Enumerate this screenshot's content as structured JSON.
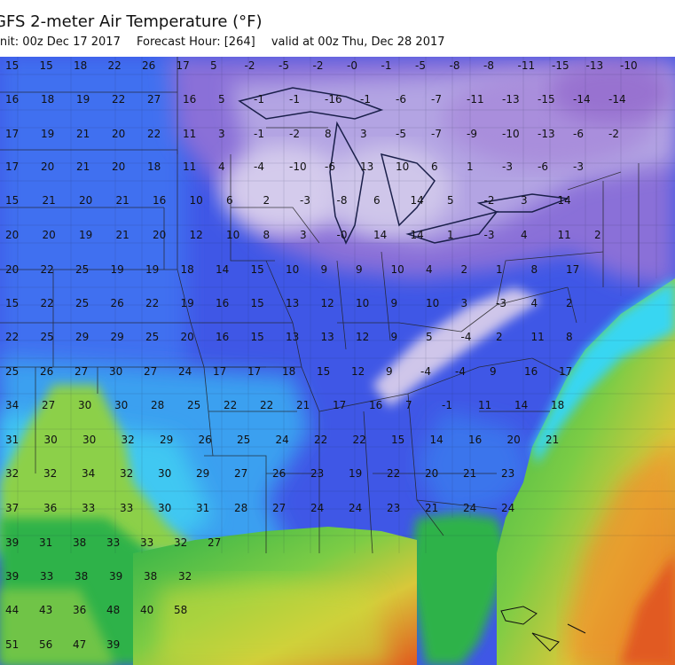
{
  "header": {
    "title": "GFS 2-meter Air Temperature (°F)",
    "init_text": "Init: 00z Dec 17 2017",
    "forecast_hour_text": "Forecast Hour: [264]",
    "valid_text": "valid at 00z Thu, Dec 28 2017"
  },
  "colors": {
    "deep_purple": "#8f68c9",
    "light_purple": "#d9d0ea",
    "purple_blue": "#7a6fd6",
    "blue": "#3f57e6",
    "light_blue": "#3f93ee",
    "cyan": "#38d6f2",
    "green": "#2fb24a",
    "lime": "#8cd04a",
    "yellow_green": "#c9d83a",
    "orange": "#ef8d2b",
    "red_orange": "#e15a20"
  },
  "temperature_rows": [
    [
      "15",
      "15",
      "18",
      "22",
      "26",
      "17",
      "5",
      "-2",
      "-5",
      "-2",
      "-0",
      "-1",
      "-5",
      "-8",
      "-8",
      "-11",
      "-15",
      "-13",
      "-10"
    ],
    [
      "16",
      "18",
      "19",
      "22",
      "27",
      "16",
      "5",
      "-1",
      "-1",
      "-16",
      "-1",
      "-6",
      "-7",
      "-11",
      "-13",
      "-15",
      "-14",
      "-14"
    ],
    [
      "17",
      "19",
      "21",
      "20",
      "22",
      "11",
      "3",
      "-1",
      "-2",
      "8",
      "3",
      "-5",
      "-7",
      "-9",
      "-10",
      "-13",
      "-6",
      "-2"
    ],
    [
      "17",
      "20",
      "21",
      "20",
      "18",
      "11",
      "4",
      "-4",
      "-10",
      "-6",
      "13",
      "10",
      "6",
      "1",
      "-3",
      "-6",
      "-3"
    ],
    [
      "15",
      "21",
      "20",
      "21",
      "16",
      "10",
      "6",
      "2",
      "-3",
      "-8",
      "6",
      "14",
      "5",
      "-2",
      "3",
      "14"
    ],
    [
      "20",
      "20",
      "19",
      "21",
      "20",
      "12",
      "10",
      "8",
      "3",
      "-0",
      "14",
      "14",
      "1",
      "-3",
      "4",
      "11",
      "2"
    ],
    [
      "20",
      "22",
      "25",
      "19",
      "19",
      "18",
      "14",
      "15",
      "10",
      "9",
      "9",
      "10",
      "4",
      "2",
      "1",
      "8",
      "17"
    ],
    [
      "15",
      "22",
      "25",
      "26",
      "22",
      "19",
      "16",
      "15",
      "13",
      "12",
      "10",
      "9",
      "10",
      "3",
      "-3",
      "4",
      "2"
    ],
    [
      "22",
      "25",
      "29",
      "29",
      "25",
      "20",
      "16",
      "15",
      "13",
      "13",
      "12",
      "9",
      "5",
      "-4",
      "2",
      "11",
      "8"
    ],
    [
      "25",
      "26",
      "27",
      "30",
      "27",
      "24",
      "17",
      "17",
      "18",
      "15",
      "12",
      "9",
      "-4",
      "-4",
      "9",
      "16",
      "17"
    ],
    [
      "34",
      "27",
      "30",
      "30",
      "28",
      "25",
      "22",
      "22",
      "21",
      "17",
      "16",
      "7",
      "-1",
      "11",
      "14",
      "18"
    ],
    [
      "31",
      "30",
      "30",
      "32",
      "29",
      "26",
      "25",
      "24",
      "22",
      "22",
      "15",
      "14",
      "16",
      "20",
      "21"
    ],
    [
      "32",
      "32",
      "34",
      "32",
      "30",
      "29",
      "27",
      "26",
      "23",
      "19",
      "22",
      "20",
      "21",
      "23"
    ],
    [
      "37",
      "36",
      "33",
      "33",
      "30",
      "31",
      "28",
      "27",
      "24",
      "24",
      "23",
      "21",
      "24",
      "24"
    ],
    [
      "39",
      "31",
      "38",
      "33",
      "33",
      "32",
      "27"
    ],
    [
      "39",
      "33",
      "38",
      "39",
      "38",
      "32"
    ],
    [
      "44",
      "43",
      "36",
      "48",
      "40",
      "58"
    ],
    [
      "51",
      "56",
      "47",
      "39"
    ]
  ]
}
